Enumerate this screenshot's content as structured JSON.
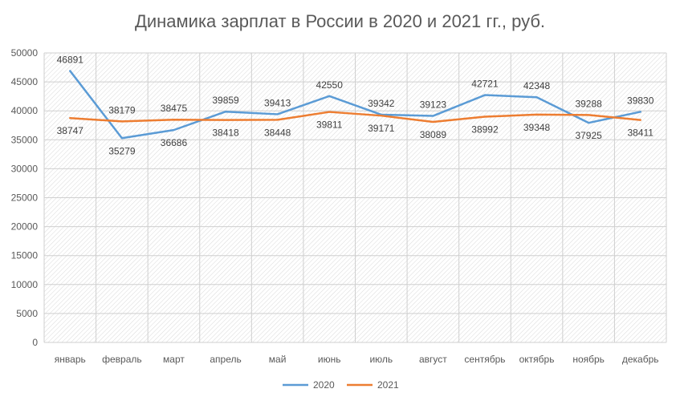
{
  "chart_data": {
    "type": "line",
    "title": "Динамика зарплат в России в 2020 и 2021 гг., руб.",
    "categories": [
      "январь",
      "февраль",
      "март",
      "апрель",
      "май",
      "июнь",
      "июль",
      "август",
      "сентябрь",
      "октябрь",
      "ноябрь",
      "декабрь"
    ],
    "ylim": [
      0,
      50000
    ],
    "yticks": [
      "0",
      "5000",
      "10000",
      "15000",
      "20000",
      "25000",
      "30000",
      "35000",
      "40000",
      "45000",
      "50000"
    ],
    "grid": true,
    "legend_position": "bottom",
    "series": [
      {
        "name": "2020",
        "color": "#5B9BD5",
        "values": [
          46891,
          35279,
          36686,
          39859,
          39413,
          42550,
          39342,
          39123,
          42721,
          42348,
          37925,
          39830
        ]
      },
      {
        "name": "2021",
        "color": "#ED7D31",
        "values": [
          38747,
          38179,
          38475,
          38418,
          38448,
          39811,
          39171,
          38089,
          38992,
          39348,
          39288,
          38411
        ]
      }
    ]
  }
}
